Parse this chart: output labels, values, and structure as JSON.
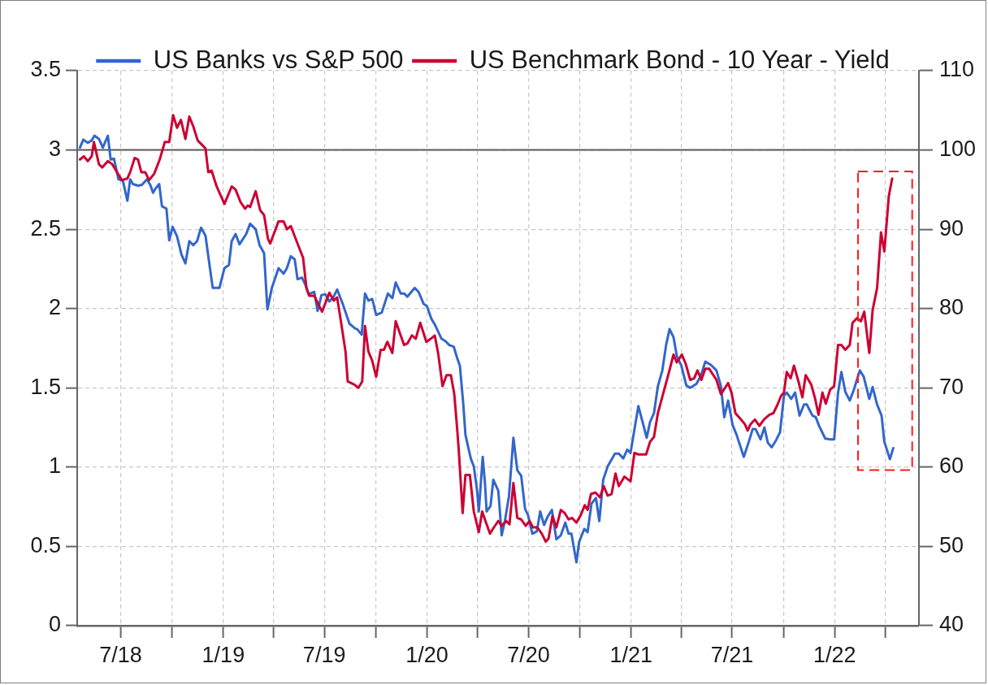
{
  "chart_data": {
    "type": "line",
    "legend": "top",
    "grid": true,
    "xlim": [
      "2018-04-14",
      "2022-06-01"
    ],
    "xticks": [
      {
        "value": "2018-07",
        "label": "7/18"
      },
      {
        "value": "2018-10",
        "label": null
      },
      {
        "value": "2019-01",
        "label": "1/19"
      },
      {
        "value": "2019-04",
        "label": null
      },
      {
        "value": "2019-07",
        "label": "7/19"
      },
      {
        "value": "2019-10",
        "label": null
      },
      {
        "value": "2020-01",
        "label": "1/20"
      },
      {
        "value": "2020-04",
        "label": null
      },
      {
        "value": "2020-07",
        "label": "7/20"
      },
      {
        "value": "2020-10",
        "label": null
      },
      {
        "value": "2021-01",
        "label": "1/21"
      },
      {
        "value": "2021-04",
        "label": null
      },
      {
        "value": "2021-07",
        "label": "7/21"
      },
      {
        "value": "2021-10",
        "label": null
      },
      {
        "value": "2022-01",
        "label": "1/22"
      },
      {
        "value": "2022-04",
        "label": null
      }
    ],
    "ylim": [
      0,
      3.5
    ],
    "yticks": [
      0,
      0.5,
      1,
      1.5,
      2,
      2.5,
      3,
      3.5
    ],
    "y2lim": [
      40,
      110
    ],
    "y2ticks": [
      40,
      50,
      60,
      70,
      80,
      90,
      100,
      110
    ],
    "ref_lines": [
      {
        "axis": "y",
        "value": 3,
        "color": "#595959"
      }
    ],
    "series": [
      {
        "name": "US Banks vs S&P 500",
        "color": "#3366cc",
        "axis": "y2",
        "x": [
          "2018-04-19",
          "2018-04-25",
          "2018-05-03",
          "2018-05-10",
          "2018-05-15",
          "2018-05-23",
          "2018-05-30",
          "2018-06-08",
          "2018-06-13",
          "2018-06-19",
          "2018-06-27",
          "2018-07-05",
          "2018-07-13",
          "2018-07-18",
          "2018-07-23",
          "2018-08-01",
          "2018-08-08",
          "2018-08-17",
          "2018-08-23",
          "2018-08-28",
          "2018-09-01",
          "2018-09-08",
          "2018-09-13",
          "2018-09-21",
          "2018-09-26",
          "2018-10-02",
          "2018-10-10",
          "2018-10-18",
          "2018-10-25",
          "2018-11-01",
          "2018-11-08",
          "2018-11-15",
          "2018-11-22",
          "2018-11-30",
          "2018-12-08",
          "2018-12-13",
          "2018-12-25",
          "2019-01-03",
          "2019-01-11",
          "2019-01-16",
          "2019-01-23",
          "2019-01-30",
          "2019-02-11",
          "2019-02-18",
          "2019-02-28",
          "2019-03-07",
          "2019-03-15",
          "2019-03-21",
          "2019-03-29",
          "2019-04-10",
          "2019-04-19",
          "2019-04-25",
          "2019-05-02",
          "2019-05-09",
          "2019-05-14",
          "2019-05-22",
          "2019-05-28",
          "2019-06-03",
          "2019-06-13",
          "2019-06-19",
          "2019-06-26",
          "2019-07-03",
          "2019-07-10",
          "2019-07-17",
          "2019-07-24",
          "2019-08-03",
          "2019-08-15",
          "2019-08-25",
          "2019-08-29",
          "2019-09-06",
          "2019-09-12",
          "2019-09-18",
          "2019-09-25",
          "2019-10-02",
          "2019-10-12",
          "2019-10-23",
          "2019-10-31",
          "2019-11-06",
          "2019-11-15",
          "2019-11-21",
          "2019-11-27",
          "2019-12-10",
          "2019-12-17",
          "2019-12-26",
          "2020-01-01",
          "2020-01-09",
          "2020-01-15",
          "2020-01-27",
          "2020-02-03",
          "2020-02-10",
          "2020-02-18",
          "2020-02-24",
          "2020-02-29",
          "2020-03-06",
          "2020-03-10",
          "2020-03-16",
          "2020-03-20",
          "2020-03-25",
          "2020-03-31",
          "2020-04-03",
          "2020-04-10",
          "2020-04-14",
          "2020-04-17",
          "2020-04-24",
          "2020-04-29",
          "2020-05-08",
          "2020-05-14",
          "2020-05-20",
          "2020-05-27",
          "2020-06-04",
          "2020-06-11",
          "2020-06-18",
          "2020-06-25",
          "2020-06-30",
          "2020-07-08",
          "2020-07-16",
          "2020-07-22",
          "2020-07-29",
          "2020-08-04",
          "2020-08-12",
          "2020-08-20",
          "2020-08-28",
          "2020-09-05",
          "2020-09-11",
          "2020-09-16",
          "2020-09-25",
          "2020-09-30",
          "2020-10-09",
          "2020-10-15",
          "2020-10-22",
          "2020-10-30",
          "2020-11-05",
          "2020-11-12",
          "2020-11-20",
          "2020-12-03",
          "2020-12-10",
          "2020-12-18",
          "2020-12-25",
          "2020-12-31",
          "2021-01-14",
          "2021-01-29",
          "2021-02-04",
          "2021-02-11",
          "2021-02-18",
          "2021-02-26",
          "2021-03-05",
          "2021-03-11",
          "2021-03-18",
          "2021-03-24",
          "2021-04-01",
          "2021-04-10",
          "2021-04-17",
          "2021-04-28",
          "2021-05-06",
          "2021-05-14",
          "2021-05-24",
          "2021-06-03",
          "2021-06-11",
          "2021-06-17",
          "2021-06-24",
          "2021-07-02",
          "2021-07-09",
          "2021-07-22",
          "2021-07-31",
          "2021-08-07",
          "2021-08-12",
          "2021-08-21",
          "2021-08-28",
          "2021-09-03",
          "2021-09-10",
          "2021-09-18",
          "2021-09-25",
          "2021-10-02",
          "2021-10-07",
          "2021-10-15",
          "2021-10-22",
          "2021-10-30",
          "2021-11-07",
          "2021-11-12",
          "2021-11-22",
          "2021-11-28",
          "2021-12-04",
          "2021-12-15",
          "2021-12-24",
          "2021-12-31",
          "2022-01-07",
          "2022-01-13",
          "2022-01-20",
          "2022-01-28",
          "2022-02-04",
          "2022-02-15",
          "2022-02-22",
          "2022-03-04",
          "2022-03-10",
          "2022-03-18",
          "2022-03-26",
          "2022-03-31",
          "2022-04-10",
          "2022-04-16"
        ],
        "values": [
          100.3,
          101.3,
          100.9,
          101.2,
          101.8,
          101.4,
          100.3,
          101.8,
          98.8,
          98.9,
          96.3,
          96.1,
          93.6,
          96.3,
          95.7,
          95.5,
          95.6,
          96.3,
          95.6,
          94.6,
          95.1,
          95.7,
          92.9,
          92.6,
          88.6,
          90.3,
          89.1,
          86.8,
          85.7,
          88.5,
          88.0,
          88.5,
          90.2,
          89.2,
          85.1,
          82.6,
          82.6,
          85.1,
          85.5,
          88.5,
          89.4,
          88.1,
          89.4,
          90.7,
          90.0,
          88.0,
          87.0,
          79.9,
          82.6,
          85.1,
          84.4,
          85.1,
          86.6,
          86.2,
          83.7,
          83.9,
          83.0,
          81.8,
          82.1,
          79.7,
          81.7,
          81.8,
          80.9,
          81.4,
          82.4,
          80.6,
          78.1,
          77.5,
          77.4,
          76.7,
          81.9,
          81.0,
          81.2,
          79.2,
          79.5,
          81.9,
          81.3,
          83.3,
          81.9,
          81.9,
          81.5,
          82.6,
          82.1,
          80.6,
          80.3,
          78.7,
          78.0,
          76.2,
          75.9,
          75.4,
          75.2,
          73.8,
          72.8,
          68.1,
          64.1,
          62.2,
          61.0,
          60.1,
          57.0,
          54.4,
          61.3,
          58.0,
          54.4,
          55.1,
          58.4,
          57.0,
          51.4,
          53.3,
          56.3,
          63.7,
          59.6,
          58.9,
          54.7,
          54.0,
          51.6,
          51.9,
          54.4,
          52.7,
          53.7,
          54.6,
          50.9,
          51.4,
          53.0,
          51.6,
          51.6,
          48.0,
          50.6,
          52.2,
          51.8,
          55.4,
          56.1,
          53.2,
          58.4,
          60.1,
          61.7,
          61.7,
          61.1,
          62.2,
          61.8,
          67.7,
          63.7,
          65.7,
          66.8,
          70.2,
          72.2,
          75.5,
          77.4,
          76.4,
          74.0,
          72.8,
          70.3,
          70.0,
          70.5,
          71.5,
          73.3,
          72.9,
          72.2,
          70.2,
          66.3,
          68.4,
          65.3,
          64.1,
          61.3,
          63.2,
          64.8,
          64.8,
          63.5,
          65.0,
          63.1,
          62.5,
          63.4,
          64.4,
          69.0,
          69.4,
          68.6,
          69.4,
          66.5,
          67.9,
          67.9,
          66.5,
          66.3,
          65.2,
          63.6,
          63.5,
          63.5,
          69.4,
          72.0,
          69.5,
          68.4,
          69.7,
          72.2,
          71.4,
          68.6,
          70.1,
          67.9,
          66.5,
          63.2,
          61.0,
          62.4
        ]
      },
      {
        "name": "US Benchmark Bond - 10 Year - Yield",
        "color": "#cc0033",
        "axis": "y",
        "x": [
          "2018-04-19",
          "2018-04-26",
          "2018-05-03",
          "2018-05-10",
          "2018-05-14",
          "2018-05-23",
          "2018-05-29",
          "2018-06-08",
          "2018-06-16",
          "2018-06-26",
          "2018-07-03",
          "2018-07-13",
          "2018-07-18",
          "2018-07-26",
          "2018-08-01",
          "2018-08-07",
          "2018-08-14",
          "2018-08-21",
          "2018-08-30",
          "2018-09-09",
          "2018-09-18",
          "2018-09-26",
          "2018-10-03",
          "2018-10-10",
          "2018-10-17",
          "2018-10-25",
          "2018-11-01",
          "2018-11-08",
          "2018-11-16",
          "2018-11-30",
          "2018-12-05",
          "2018-12-11",
          "2018-12-20",
          "2019-01-03",
          "2019-01-16",
          "2019-01-23",
          "2019-02-01",
          "2019-02-09",
          "2019-02-14",
          "2019-02-18",
          "2019-02-28",
          "2019-03-08",
          "2019-03-15",
          "2019-03-22",
          "2019-03-26",
          "2019-04-10",
          "2019-04-19",
          "2019-04-25",
          "2019-05-02",
          "2019-05-14",
          "2019-05-24",
          "2019-05-30",
          "2019-06-04",
          "2019-06-13",
          "2019-06-27",
          "2019-07-10",
          "2019-07-18",
          "2019-07-24",
          "2019-07-29",
          "2019-08-08",
          "2019-08-12",
          "2019-08-24",
          "2019-08-31",
          "2019-09-07",
          "2019-09-12",
          "2019-09-18",
          "2019-09-25",
          "2019-10-02",
          "2019-10-10",
          "2019-10-16",
          "2019-10-22",
          "2019-10-31",
          "2019-11-06",
          "2019-11-14",
          "2019-11-21",
          "2019-11-27",
          "2019-12-05",
          "2019-12-12",
          "2019-12-20",
          "2019-12-31",
          "2020-01-08",
          "2020-01-15",
          "2020-01-21",
          "2020-01-29",
          "2020-02-05",
          "2020-02-13",
          "2020-02-19",
          "2020-02-24",
          "2020-02-27",
          "2020-03-05",
          "2020-03-10",
          "2020-03-18",
          "2020-03-25",
          "2020-04-03",
          "2020-04-09",
          "2020-04-16",
          "2020-04-23",
          "2020-04-30",
          "2020-05-08",
          "2020-05-14",
          "2020-05-22",
          "2020-05-28",
          "2020-06-04",
          "2020-06-11",
          "2020-06-18",
          "2020-06-26",
          "2020-07-03",
          "2020-07-09",
          "2020-07-17",
          "2020-07-25",
          "2020-08-01",
          "2020-08-06",
          "2020-08-13",
          "2020-08-20",
          "2020-08-28",
          "2020-09-04",
          "2020-09-11",
          "2020-09-17",
          "2020-09-25",
          "2020-10-03",
          "2020-10-10",
          "2020-10-15",
          "2020-10-21",
          "2020-10-29",
          "2020-11-06",
          "2020-11-13",
          "2020-11-20",
          "2020-11-27",
          "2020-12-04",
          "2020-12-10",
          "2020-12-20",
          "2020-12-31",
          "2021-01-07",
          "2021-01-14",
          "2021-01-28",
          "2021-02-04",
          "2021-02-11",
          "2021-02-18",
          "2021-02-28",
          "2021-03-10",
          "2021-03-18",
          "2021-03-24",
          "2021-04-02",
          "2021-04-09",
          "2021-04-17",
          "2021-04-24",
          "2021-04-30",
          "2021-05-07",
          "2021-05-14",
          "2021-05-21",
          "2021-06-03",
          "2021-06-11",
          "2021-06-24",
          "2021-06-30",
          "2021-07-07",
          "2021-07-17",
          "2021-07-24",
          "2021-07-29",
          "2021-08-03",
          "2021-08-11",
          "2021-08-19",
          "2021-08-27",
          "2021-09-06",
          "2021-09-13",
          "2021-09-20",
          "2021-09-27",
          "2021-10-02",
          "2021-10-07",
          "2021-10-14",
          "2021-10-20",
          "2021-10-28",
          "2021-11-04",
          "2021-11-10",
          "2021-11-20",
          "2021-11-27",
          "2021-12-03",
          "2021-12-10",
          "2021-12-16",
          "2021-12-24",
          "2021-12-31",
          "2022-01-07",
          "2022-01-13",
          "2022-01-20",
          "2022-01-28",
          "2022-02-02",
          "2022-02-10",
          "2022-02-17",
          "2022-02-23",
          "2022-03-04",
          "2022-03-10",
          "2022-03-18",
          "2022-03-25",
          "2022-03-31",
          "2022-04-08",
          "2022-04-14"
        ],
        "values": [
          2.94,
          2.96,
          2.93,
          2.96,
          3.05,
          2.91,
          2.89,
          2.93,
          2.91,
          2.85,
          2.81,
          2.82,
          2.86,
          2.95,
          2.94,
          2.86,
          2.86,
          2.81,
          2.85,
          2.94,
          3.05,
          3.05,
          3.22,
          3.14,
          3.19,
          3.07,
          3.21,
          3.15,
          3.06,
          3.01,
          2.86,
          2.87,
          2.77,
          2.66,
          2.77,
          2.75,
          2.67,
          2.63,
          2.65,
          2.64,
          2.74,
          2.62,
          2.59,
          2.44,
          2.41,
          2.55,
          2.55,
          2.5,
          2.52,
          2.41,
          2.32,
          2.13,
          2.08,
          2.08,
          1.98,
          2.1,
          2.05,
          2.07,
          1.96,
          1.73,
          1.54,
          1.52,
          1.5,
          1.54,
          1.89,
          1.73,
          1.67,
          1.57,
          1.74,
          1.74,
          1.79,
          1.72,
          1.92,
          1.84,
          1.77,
          1.78,
          1.83,
          1.81,
          1.91,
          1.79,
          1.81,
          1.83,
          1.72,
          1.51,
          1.58,
          1.58,
          1.46,
          1.25,
          1.11,
          0.71,
          0.95,
          0.95,
          0.72,
          0.59,
          0.72,
          0.65,
          0.58,
          0.62,
          0.66,
          0.63,
          0.66,
          0.64,
          0.9,
          0.68,
          0.67,
          0.63,
          0.66,
          0.62,
          0.62,
          0.58,
          0.53,
          0.55,
          0.69,
          0.62,
          0.73,
          0.71,
          0.67,
          0.68,
          0.65,
          0.7,
          0.76,
          0.73,
          0.83,
          0.84,
          0.81,
          0.88,
          0.82,
          0.83,
          0.96,
          0.88,
          0.94,
          0.91,
          1.09,
          1.08,
          1.08,
          1.16,
          1.19,
          1.34,
          1.47,
          1.6,
          1.71,
          1.66,
          1.71,
          1.65,
          1.55,
          1.56,
          1.61,
          1.55,
          1.62,
          1.62,
          1.55,
          1.46,
          1.53,
          1.47,
          1.34,
          1.3,
          1.27,
          1.23,
          1.27,
          1.3,
          1.26,
          1.3,
          1.33,
          1.34,
          1.39,
          1.45,
          1.47,
          1.6,
          1.56,
          1.64,
          1.54,
          1.44,
          1.58,
          1.52,
          1.43,
          1.33,
          1.47,
          1.4,
          1.49,
          1.51,
          1.77,
          1.77,
          1.74,
          1.77,
          1.91,
          1.94,
          1.92,
          1.98,
          1.72,
          1.99,
          2.13,
          2.48,
          2.36,
          2.71,
          2.82
        ]
      }
    ]
  }
}
